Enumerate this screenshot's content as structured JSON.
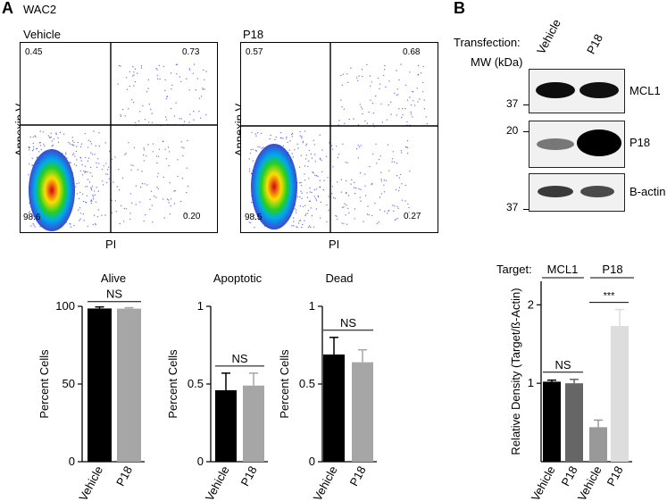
{
  "panel_a": {
    "letter": "A",
    "cell_line": "WAC2",
    "flow_plots": [
      {
        "title": "Vehicle",
        "ylabel": "Annexin V",
        "xlabel": "PI",
        "q_ul": "0.45",
        "q_ur": "0.73",
        "q_ll": "98.6",
        "q_lr": "0.20"
      },
      {
        "title": "P18",
        "ylabel": "Annexin V",
        "xlabel": "PI",
        "q_ul": "0.57",
        "q_ur": "0.68",
        "q_ll": "98.5",
        "q_lr": "0.27"
      }
    ]
  },
  "panel_b": {
    "letter": "B",
    "transfection_label": "Transfection:",
    "mw_label": "MW (kDa)",
    "lanes": [
      "Vehicle",
      "P18"
    ],
    "blots": [
      {
        "label": "MCL1",
        "mw": "37",
        "mw_pos": "bottom"
      },
      {
        "label": "P18",
        "mw": "20",
        "mw_pos": "top"
      },
      {
        "label": "B-actin",
        "mw": "37",
        "mw_pos": "bottom"
      }
    ]
  },
  "chart_data": [
    {
      "type": "bar",
      "title": "Alive",
      "ylabel": "Percent Cells",
      "categories": [
        "Vehicle",
        "P18"
      ],
      "values": [
        98.6,
        98.5
      ],
      "errors": [
        1.0,
        0.6
      ],
      "colors": [
        "#000000",
        "#a6a6a6"
      ],
      "yticks": [
        "0",
        "50",
        "100"
      ],
      "ylim": [
        0,
        100
      ],
      "sig": "NS"
    },
    {
      "type": "bar",
      "title": "Apoptotic",
      "ylabel": "Percent Cells",
      "categories": [
        "Vehicle",
        "P18"
      ],
      "values": [
        0.46,
        0.49
      ],
      "errors": [
        0.11,
        0.08
      ],
      "colors": [
        "#000000",
        "#a6a6a6"
      ],
      "yticks": [
        "0",
        "0.5",
        "1"
      ],
      "ylim": [
        0,
        1
      ],
      "sig": "NS"
    },
    {
      "type": "bar",
      "title": "Dead",
      "ylabel": "Percent Cells",
      "categories": [
        "Vehicle",
        "P18"
      ],
      "values": [
        0.69,
        0.64
      ],
      "errors": [
        0.11,
        0.08
      ],
      "colors": [
        "#000000",
        "#a6a6a6"
      ],
      "yticks": [
        "0",
        "0.5",
        "1"
      ],
      "ylim": [
        0,
        1
      ],
      "sig": "NS"
    },
    {
      "type": "bar",
      "title": "",
      "ylabel": "Relative Density (Target/ß-Actin)",
      "target_label": "Target:",
      "groups": [
        "MCL1",
        "P18"
      ],
      "categories": [
        "Vehicle",
        "P18",
        "Vehicle",
        "P18"
      ],
      "values": [
        1.02,
        1.0,
        0.44,
        1.73
      ],
      "errors": [
        0.02,
        0.05,
        0.09,
        0.21
      ],
      "colors": [
        "#000000",
        "#666666",
        "#999999",
        "#dddddd"
      ],
      "yticks": [
        "1",
        "2"
      ],
      "ylim": [
        0,
        2.3
      ],
      "sig": [
        {
          "label": "NS",
          "bars": [
            0,
            1
          ]
        },
        {
          "label": "***",
          "bars": [
            2,
            3
          ]
        }
      ]
    }
  ]
}
